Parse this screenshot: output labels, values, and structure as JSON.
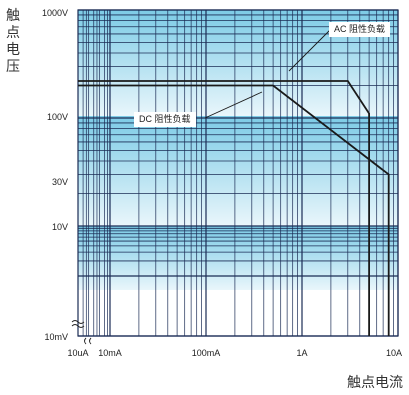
{
  "chart_data": {
    "type": "line",
    "ylabel": "触点电压",
    "xlabel": "触点电流",
    "x_scale": "log",
    "y_scale": "log",
    "xlim": [
      "10uA",
      "10A"
    ],
    "ylim": [
      "10mV",
      "1000V"
    ],
    "x_tick_labels": [
      "10uA",
      "10mA",
      "100mA",
      "1A",
      "10A"
    ],
    "y_tick_labels": [
      "1000V",
      "100V",
      "30V",
      "10V",
      "10mV"
    ],
    "series": [
      {
        "name": "AC 阻性负载",
        "points": [
          {
            "x": "10uA",
            "y": 220
          },
          {
            "x": 3.0,
            "y": 220
          },
          {
            "x": 5.0,
            "y": 110
          },
          {
            "x": 5.0,
            "y": 0.01
          }
        ]
      },
      {
        "name": "DC 阻性负载",
        "points": [
          {
            "x": "10uA",
            "y": 200
          },
          {
            "x": 0.5,
            "y": 200
          },
          {
            "x": 8.0,
            "y": 30
          },
          {
            "x": 8.0,
            "y": 0.01
          }
        ]
      }
    ],
    "grid": true,
    "legend": "inline callouts"
  }
}
